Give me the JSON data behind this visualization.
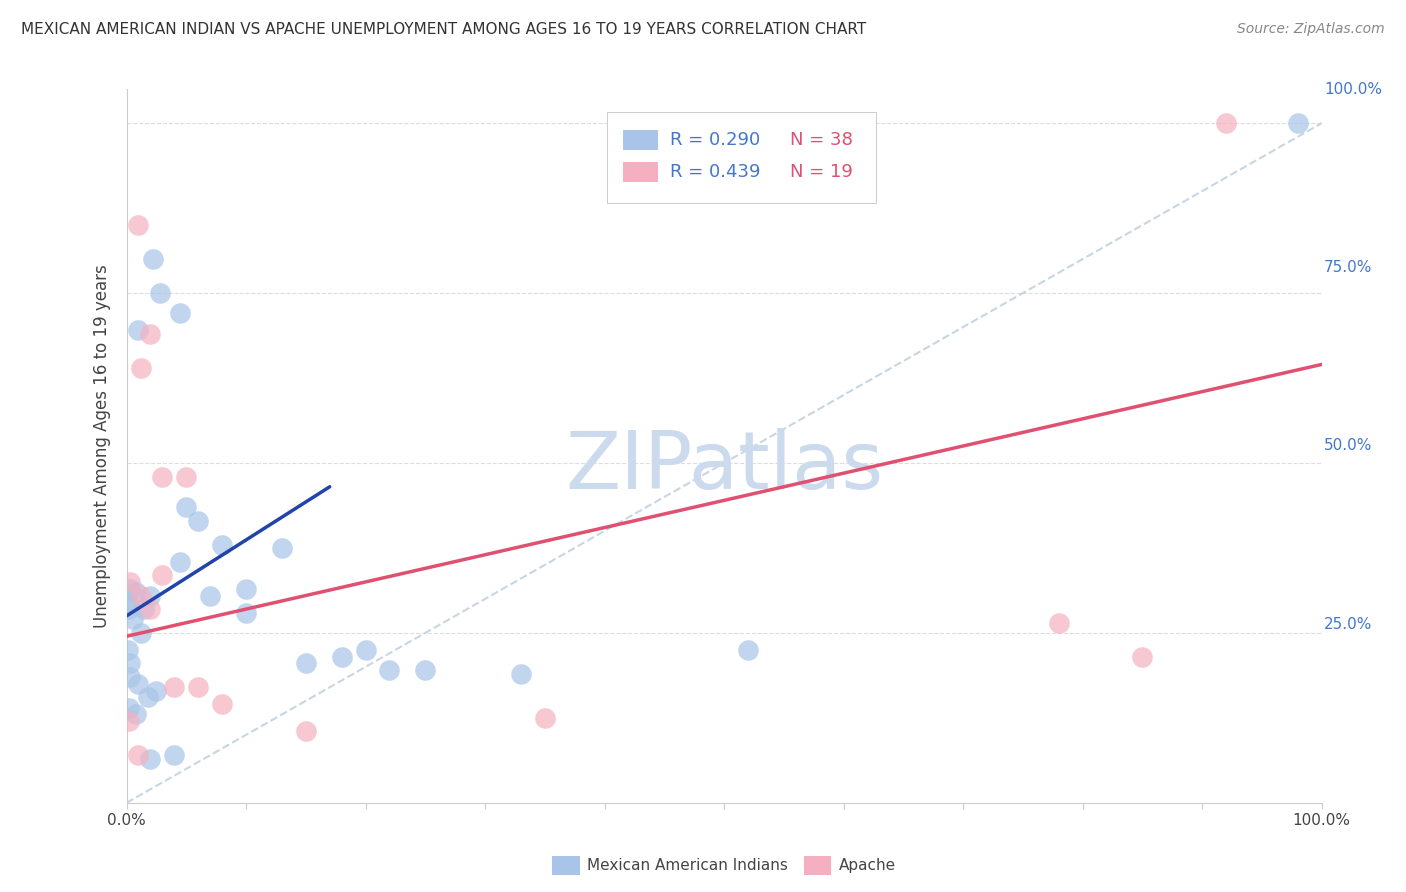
{
  "title": "MEXICAN AMERICAN INDIAN VS APACHE UNEMPLOYMENT AMONG AGES 16 TO 19 YEARS CORRELATION CHART",
  "source": "Source: ZipAtlas.com",
  "ylabel": "Unemployment Among Ages 16 to 19 years",
  "legend_label_blue": "Mexican American Indians",
  "legend_label_pink": "Apache",
  "R_blue": "R = 0.290",
  "N_blue": "N = 38",
  "R_pink": "R = 0.439",
  "N_pink": "N = 19",
  "blue_scatter_color": "#a8c4e8",
  "pink_scatter_color": "#f4b0c0",
  "blue_line_color": "#2244aa",
  "pink_line_color": "#e05070",
  "blue_text_color": "#4477cc",
  "pink_text_color": "#e05070",
  "grid_color": "#dddddd",
  "watermark_color": "#ccdaee",
  "background_color": "#ffffff",
  "tick_label_color": "#4477cc",
  "xlim": [
    0.0,
    1.0
  ],
  "ylim": [
    0.0,
    1.05
  ],
  "ytick_positions": [
    0.25,
    0.5,
    0.75,
    1.0
  ],
  "ytick_labels": [
    "25.0%",
    "50.0%",
    "75.0%",
    "100.0%"
  ],
  "xtick_positions": [
    0.0,
    0.1,
    0.2,
    0.3,
    0.4,
    0.5,
    0.6,
    0.7,
    0.8,
    0.9,
    1.0
  ],
  "blue_scatter_x": [
    0.022,
    0.028,
    0.01,
    0.045,
    0.001,
    0.003,
    0.005,
    0.015,
    0.02,
    0.008,
    0.002,
    0.012,
    0.001,
    0.003,
    0.003,
    0.01,
    0.018,
    0.025,
    0.002,
    0.008,
    0.05,
    0.06,
    0.045,
    0.08,
    0.07,
    0.1,
    0.13,
    0.1,
    0.15,
    0.18,
    0.22,
    0.2,
    0.25,
    0.04,
    0.02,
    0.33,
    0.52,
    0.98
  ],
  "blue_scatter_y": [
    0.8,
    0.75,
    0.695,
    0.72,
    0.295,
    0.315,
    0.27,
    0.285,
    0.305,
    0.31,
    0.285,
    0.25,
    0.225,
    0.205,
    0.185,
    0.175,
    0.155,
    0.165,
    0.14,
    0.13,
    0.435,
    0.415,
    0.355,
    0.38,
    0.305,
    0.315,
    0.375,
    0.28,
    0.205,
    0.215,
    0.195,
    0.225,
    0.195,
    0.07,
    0.065,
    0.19,
    0.225,
    1.0
  ],
  "pink_scatter_x": [
    0.01,
    0.02,
    0.012,
    0.03,
    0.03,
    0.05,
    0.003,
    0.012,
    0.02,
    0.04,
    0.06,
    0.08,
    0.002,
    0.01,
    0.78,
    0.85,
    0.35,
    0.15,
    0.92
  ],
  "pink_scatter_y": [
    0.85,
    0.69,
    0.64,
    0.48,
    0.335,
    0.48,
    0.325,
    0.305,
    0.285,
    0.17,
    0.17,
    0.145,
    0.12,
    0.07,
    0.265,
    0.215,
    0.125,
    0.105,
    1.0
  ],
  "blue_line_x": [
    0.0,
    0.17
  ],
  "blue_line_y": [
    0.275,
    0.465
  ],
  "pink_line_x": [
    0.0,
    1.0
  ],
  "pink_line_y": [
    0.245,
    0.645
  ],
  "ref_line_x": [
    0.0,
    1.0
  ],
  "ref_line_y": [
    0.0,
    1.0
  ]
}
